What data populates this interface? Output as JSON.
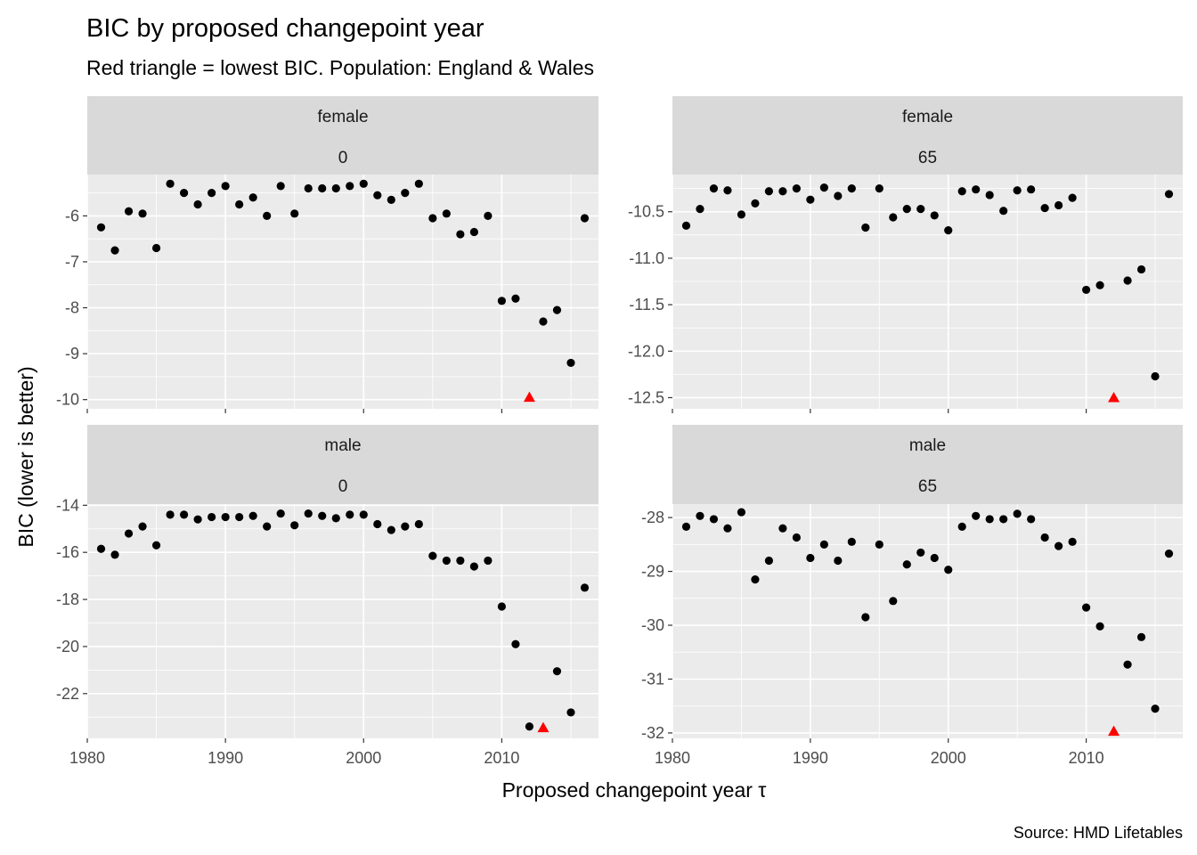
{
  "title": "BIC by proposed changepoint year",
  "subtitle": "Red triangle = lowest BIC. Population: England & Wales",
  "caption": "Source: HMD Lifetables",
  "colors": {
    "point": "#000000",
    "minimum": "#FF0000",
    "panel_bg": "#EBEBEB",
    "strip_bg": "#D9D9D9",
    "grid": "#FFFFFF"
  },
  "chart_data": {
    "type": "scatter",
    "title": "BIC by proposed changepoint year",
    "subtitle": "Red triangle = lowest BIC. Population: England & Wales",
    "xlabel": "Proposed changepoint year τ",
    "ylabel": "BIC (lower is better)",
    "xlim": [
      1980,
      2017
    ],
    "x_ticks": [
      1980,
      1990,
      2000,
      2010
    ],
    "grid": true,
    "facet_scales": "free_y",
    "years": [
      1981,
      1982,
      1983,
      1984,
      1985,
      1986,
      1987,
      1988,
      1989,
      1990,
      1991,
      1992,
      1993,
      1994,
      1995,
      1996,
      1997,
      1998,
      1999,
      2000,
      2001,
      2002,
      2003,
      2004,
      2005,
      2006,
      2007,
      2008,
      2009,
      2010,
      2011,
      2012,
      2013,
      2014,
      2015,
      2016
    ],
    "panels": [
      {
        "strip": [
          "female",
          "0"
        ],
        "ylim": [
          -10.2,
          -5.1
        ],
        "y_ticks": [
          -10,
          -9,
          -8,
          -7,
          -6
        ],
        "values": [
          -6.25,
          -6.75,
          -5.9,
          -5.95,
          -6.7,
          -5.3,
          -5.5,
          -5.75,
          -5.5,
          -5.35,
          -5.75,
          -5.6,
          -6.0,
          -5.35,
          -5.95,
          -5.4,
          -5.4,
          -5.4,
          -5.35,
          -5.3,
          -5.55,
          -5.65,
          -5.5,
          -5.3,
          -6.05,
          -5.95,
          -6.4,
          -6.35,
          -6.0,
          -7.85,
          -7.8,
          null,
          -8.3,
          -8.05,
          -9.2,
          -6.05
        ],
        "minimum": {
          "year": 2012,
          "value": -9.95
        }
      },
      {
        "strip": [
          "female",
          "65"
        ],
        "ylim": [
          -12.62,
          -10.1
        ],
        "y_ticks": [
          -12.5,
          -12.0,
          -11.5,
          -11.0,
          -10.5
        ],
        "values": [
          -10.65,
          -10.47,
          -10.25,
          -10.27,
          -10.53,
          -10.41,
          -10.28,
          -10.28,
          -10.25,
          -10.37,
          -10.24,
          -10.33,
          -10.25,
          -10.67,
          -10.25,
          -10.56,
          -10.47,
          -10.47,
          -10.54,
          -10.7,
          -10.28,
          -10.26,
          -10.32,
          -10.49,
          -10.27,
          -10.26,
          -10.46,
          -10.43,
          -10.35,
          -11.34,
          -11.29,
          null,
          -11.24,
          -11.12,
          -12.27,
          -10.31
        ],
        "minimum": {
          "year": 2012,
          "value": -12.5
        }
      },
      {
        "strip": [
          "male",
          "0"
        ],
        "ylim": [
          -23.9,
          -13.95
        ],
        "y_ticks": [
          -22,
          -20,
          -18,
          -16,
          -14
        ],
        "values": [
          -15.85,
          -16.1,
          -15.2,
          -14.9,
          -15.7,
          -14.4,
          -14.4,
          -14.6,
          -14.5,
          -14.5,
          -14.5,
          -14.45,
          -14.9,
          -14.35,
          -14.85,
          -14.35,
          -14.45,
          -14.55,
          -14.4,
          -14.4,
          -14.8,
          -15.05,
          -14.9,
          -14.8,
          -16.15,
          -16.35,
          -16.35,
          -16.6,
          -16.35,
          -18.3,
          -19.9,
          -23.4,
          null,
          -21.05,
          -22.8,
          -17.5
        ],
        "minimum": {
          "year": 2013,
          "value": -23.45
        }
      },
      {
        "strip": [
          "male",
          "65"
        ],
        "ylim": [
          -32.1,
          -27.75
        ],
        "y_ticks": [
          -32,
          -31,
          -30,
          -29,
          -28
        ],
        "values": [
          -28.17,
          -27.97,
          -28.03,
          -28.2,
          -27.9,
          -29.15,
          -28.8,
          -28.2,
          -28.37,
          -28.75,
          -28.5,
          -28.8,
          -28.45,
          -29.85,
          -28.5,
          -29.55,
          -28.87,
          -28.65,
          -28.75,
          -28.97,
          -28.17,
          -27.97,
          -28.03,
          -28.03,
          -27.93,
          -28.03,
          -28.37,
          -28.53,
          -28.45,
          -29.67,
          -30.02,
          null,
          -30.73,
          -30.22,
          -31.55,
          -28.67
        ],
        "minimum": {
          "year": 2012,
          "value": -31.97
        }
      }
    ]
  }
}
